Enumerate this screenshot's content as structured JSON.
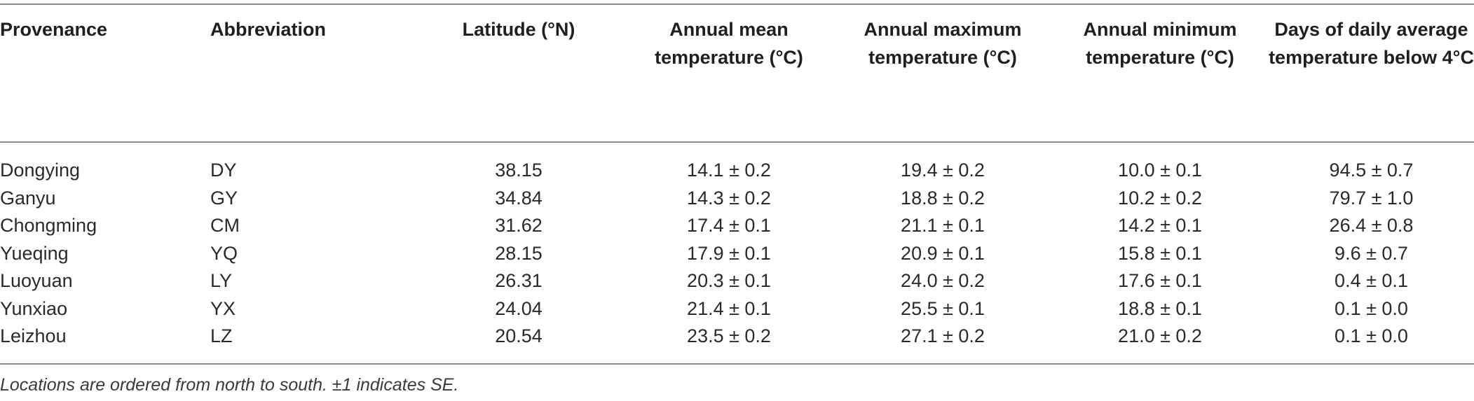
{
  "table": {
    "headers": [
      "Provenance",
      "Abbreviation",
      "Latitude (°N)",
      "Annual mean temperature (°C)",
      "Annual maximum temperature (°C)",
      "Annual minimum temperature (°C)",
      "Days of daily average temperature below 4°C"
    ],
    "rows": [
      [
        "Dongying",
        "DY",
        "38.15",
        "14.1 ± 0.2",
        "19.4 ± 0.2",
        "10.0 ± 0.1",
        "94.5 ± 0.7"
      ],
      [
        "Ganyu",
        "GY",
        "34.84",
        "14.3 ± 0.2",
        "18.8 ± 0.2",
        "10.2 ± 0.2",
        "79.7 ± 1.0"
      ],
      [
        "Chongming",
        "CM",
        "31.62",
        "17.4 ± 0.1",
        "21.1 ± 0.1",
        "14.2 ± 0.1",
        "26.4 ± 0.8"
      ],
      [
        "Yueqing",
        "YQ",
        "28.15",
        "17.9 ± 0.1",
        "20.9 ± 0.1",
        "15.8 ± 0.1",
        "9.6 ± 0.7"
      ],
      [
        "Luoyuan",
        "LY",
        "26.31",
        "20.3 ± 0.1",
        "24.0 ± 0.2",
        "17.6 ± 0.1",
        "0.4 ± 0.1"
      ],
      [
        "Yunxiao",
        "YX",
        "24.04",
        "21.4 ± 0.1",
        "25.5 ± 0.1",
        "18.8 ± 0.1",
        "0.1 ± 0.0"
      ],
      [
        "Leizhou",
        "LZ",
        "20.54",
        "23.5 ± 0.2",
        "27.1 ± 0.2",
        "21.0 ± 0.2",
        "0.1 ± 0.0"
      ]
    ]
  },
  "footnote": "Locations are ordered from north to south. ±1 indicates SE."
}
